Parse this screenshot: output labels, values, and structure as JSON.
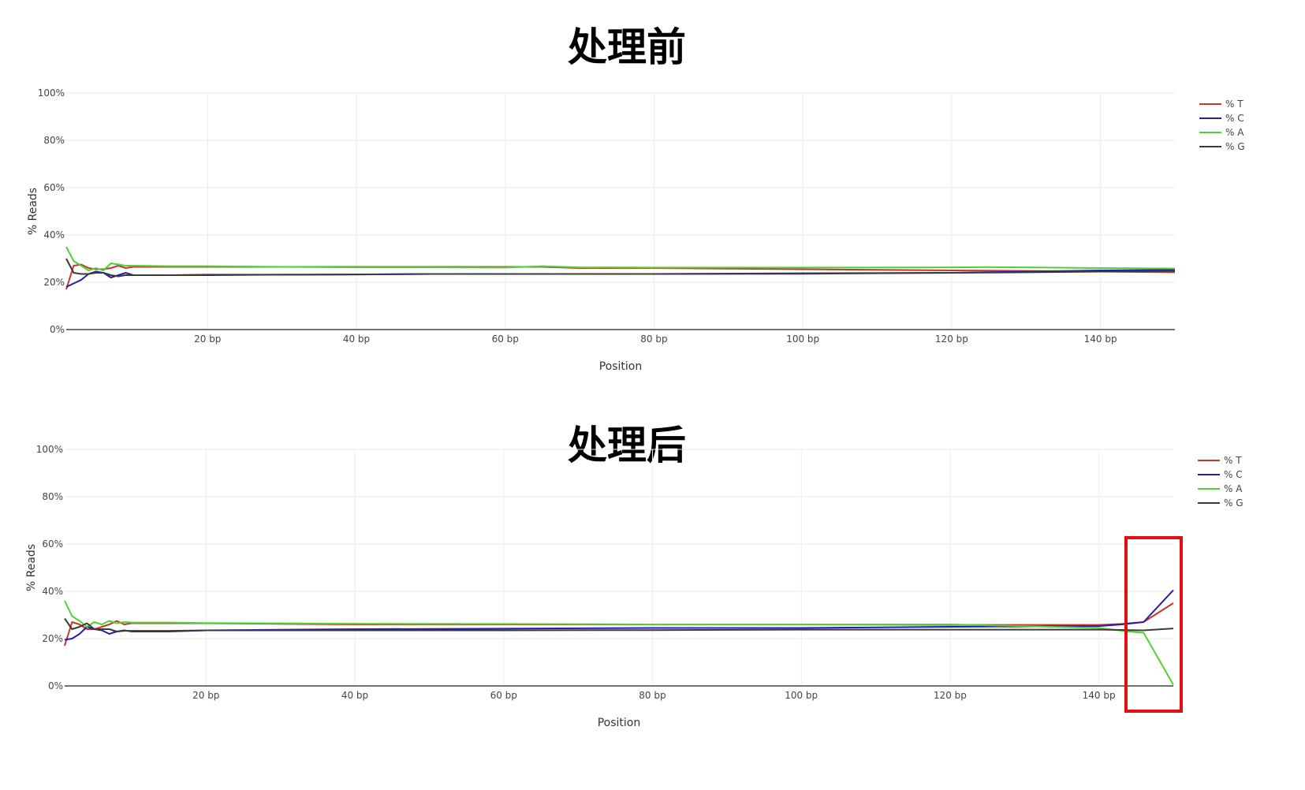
{
  "titles": {
    "before": "处理前",
    "after": "处理后"
  },
  "chart_data": [
    {
      "type": "line",
      "title": "处理前",
      "xlabel": "Position",
      "ylabel": "% Reads",
      "xlim": [
        1,
        150
      ],
      "ylim": [
        0,
        100
      ],
      "x_tick_values": [
        20,
        40,
        60,
        80,
        100,
        120,
        140
      ],
      "x_tick_labels": [
        "20 bp",
        "40 bp",
        "60 bp",
        "80 bp",
        "100 bp",
        "120 bp",
        "140 bp"
      ],
      "y_tick_values": [
        0,
        20,
        40,
        60,
        80,
        100
      ],
      "y_tick_labels": [
        "0%",
        "20%",
        "40%",
        "60%",
        "80%",
        "100%"
      ],
      "grid": true,
      "legend": "right",
      "series": [
        {
          "name": "% T",
          "color": "#c0392b",
          "x": [
            1,
            2,
            3,
            4,
            5,
            6,
            7,
            8,
            9,
            10,
            15,
            20,
            30,
            40,
            50,
            60,
            65,
            70,
            80,
            100,
            120,
            130,
            140,
            150
          ],
          "y": [
            17,
            27,
            27.5,
            26,
            25.5,
            25.5,
            26,
            27,
            26,
            26.5,
            26.5,
            26.5,
            26.5,
            26.5,
            26.5,
            26.5,
            26.5,
            26,
            26,
            25.5,
            25,
            24.8,
            24.5,
            24.2
          ]
        },
        {
          "name": "% C",
          "color": "#2a1ab3",
          "x": [
            1,
            2,
            3,
            4,
            5,
            6,
            7,
            8,
            9,
            10,
            15,
            20,
            30,
            40,
            50,
            60,
            70,
            80,
            100,
            120,
            130,
            140,
            150
          ],
          "y": [
            18,
            19.5,
            21,
            23.5,
            24.5,
            24,
            22,
            23,
            24,
            23,
            23,
            23,
            23.2,
            23.3,
            23.5,
            23.5,
            23.5,
            23.5,
            23.8,
            24,
            24.5,
            25,
            25.3
          ]
        },
        {
          "name": "% A",
          "color": "#4fd033",
          "x": [
            1,
            2,
            3,
            4,
            5,
            6,
            7,
            8,
            9,
            10,
            15,
            20,
            30,
            40,
            50,
            60,
            65,
            70,
            80,
            100,
            120,
            125,
            140,
            150
          ],
          "y": [
            35,
            29,
            27,
            25,
            26,
            25,
            28,
            27.5,
            27,
            27,
            26.8,
            26.8,
            26.5,
            26.3,
            26.3,
            26.2,
            26.8,
            26.3,
            26.2,
            26.2,
            26.3,
            26.4,
            26,
            25.8
          ]
        },
        {
          "name": "% G",
          "color": "#3a3a3a",
          "x": [
            1,
            2,
            3,
            4,
            5,
            6,
            7,
            8,
            9,
            10,
            15,
            20,
            30,
            40,
            50,
            60,
            70,
            80,
            100,
            120,
            130,
            140,
            150
          ],
          "y": [
            30,
            24,
            23.5,
            23.5,
            24,
            24,
            23,
            22.5,
            23,
            23,
            23,
            23.2,
            23.2,
            23.3,
            23.5,
            23.5,
            23.5,
            23.5,
            23.6,
            24,
            24.2,
            24.5,
            24.8
          ]
        }
      ]
    },
    {
      "type": "line",
      "title": "处理后",
      "xlabel": "Position",
      "ylabel": "% Reads",
      "xlim": [
        1,
        150
      ],
      "ylim": [
        0,
        100
      ],
      "x_tick_values": [
        20,
        40,
        60,
        80,
        100,
        120,
        140
      ],
      "x_tick_labels": [
        "20 bp",
        "40 bp",
        "60 bp",
        "80 bp",
        "100 bp",
        "120 bp",
        "140 bp"
      ],
      "y_tick_values": [
        0,
        20,
        40,
        60,
        80,
        100
      ],
      "y_tick_labels": [
        "0%",
        "20%",
        "40%",
        "60%",
        "80%",
        "100%"
      ],
      "grid": true,
      "legend": "right",
      "highlight_x_range": [
        143,
        150
      ],
      "highlight_color": "#e01010",
      "series": [
        {
          "name": "% T",
          "color": "#c0392b",
          "x": [
            1,
            2,
            3,
            4,
            5,
            6,
            7,
            8,
            9,
            10,
            15,
            20,
            40,
            60,
            80,
            100,
            120,
            140,
            143,
            146,
            150
          ],
          "y": [
            17,
            27,
            26,
            24,
            24,
            25,
            26,
            27.5,
            26,
            26.5,
            26.5,
            26.5,
            26,
            26,
            26,
            26,
            25.8,
            25.8,
            26.2,
            27,
            35
          ]
        },
        {
          "name": "% C",
          "color": "#2a1ab3",
          "x": [
            1,
            2,
            3,
            4,
            5,
            6,
            7,
            8,
            9,
            10,
            15,
            20,
            40,
            60,
            80,
            100,
            120,
            140,
            143,
            146,
            150
          ],
          "y": [
            19.5,
            20,
            22,
            25,
            24,
            23.5,
            22,
            23,
            23.5,
            23,
            23,
            23.5,
            24,
            24.2,
            24.5,
            24.5,
            25,
            25.3,
            26,
            27,
            40.5
          ]
        },
        {
          "name": "% A",
          "color": "#4fd033",
          "x": [
            1,
            2,
            3,
            4,
            5,
            6,
            7,
            8,
            9,
            10,
            15,
            20,
            40,
            60,
            80,
            100,
            120,
            140,
            144,
            146,
            150
          ],
          "y": [
            36,
            29.5,
            27.5,
            25,
            27,
            26,
            27.5,
            26.5,
            27,
            26.8,
            26.8,
            26.6,
            26.3,
            26.2,
            26,
            26,
            26,
            24.5,
            23,
            22.5,
            0.5
          ]
        },
        {
          "name": "% G",
          "color": "#3a3a3a",
          "x": [
            1,
            2,
            3,
            4,
            5,
            6,
            7,
            8,
            9,
            10,
            15,
            20,
            40,
            60,
            80,
            100,
            120,
            140,
            146,
            150
          ],
          "y": [
            28.5,
            24,
            25,
            26.5,
            24,
            24,
            24,
            23,
            23.3,
            23.3,
            23.3,
            23.5,
            23.5,
            23.5,
            23.6,
            23.8,
            23.8,
            23.8,
            23.5,
            24.3
          ]
        }
      ]
    }
  ]
}
